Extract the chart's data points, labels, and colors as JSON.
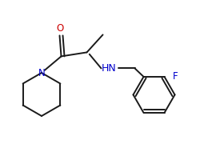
{
  "bg_color": "#ffffff",
  "line_color": "#1a1a1a",
  "N_color": "#0000cc",
  "O_color": "#cc0000",
  "F_color": "#0000cc",
  "line_width": 1.4,
  "font_size": 8.5,
  "fig_w": 2.7,
  "fig_h": 1.85,
  "dpi": 100,
  "xlim": [
    0,
    270
  ],
  "ylim": [
    0,
    185
  ]
}
